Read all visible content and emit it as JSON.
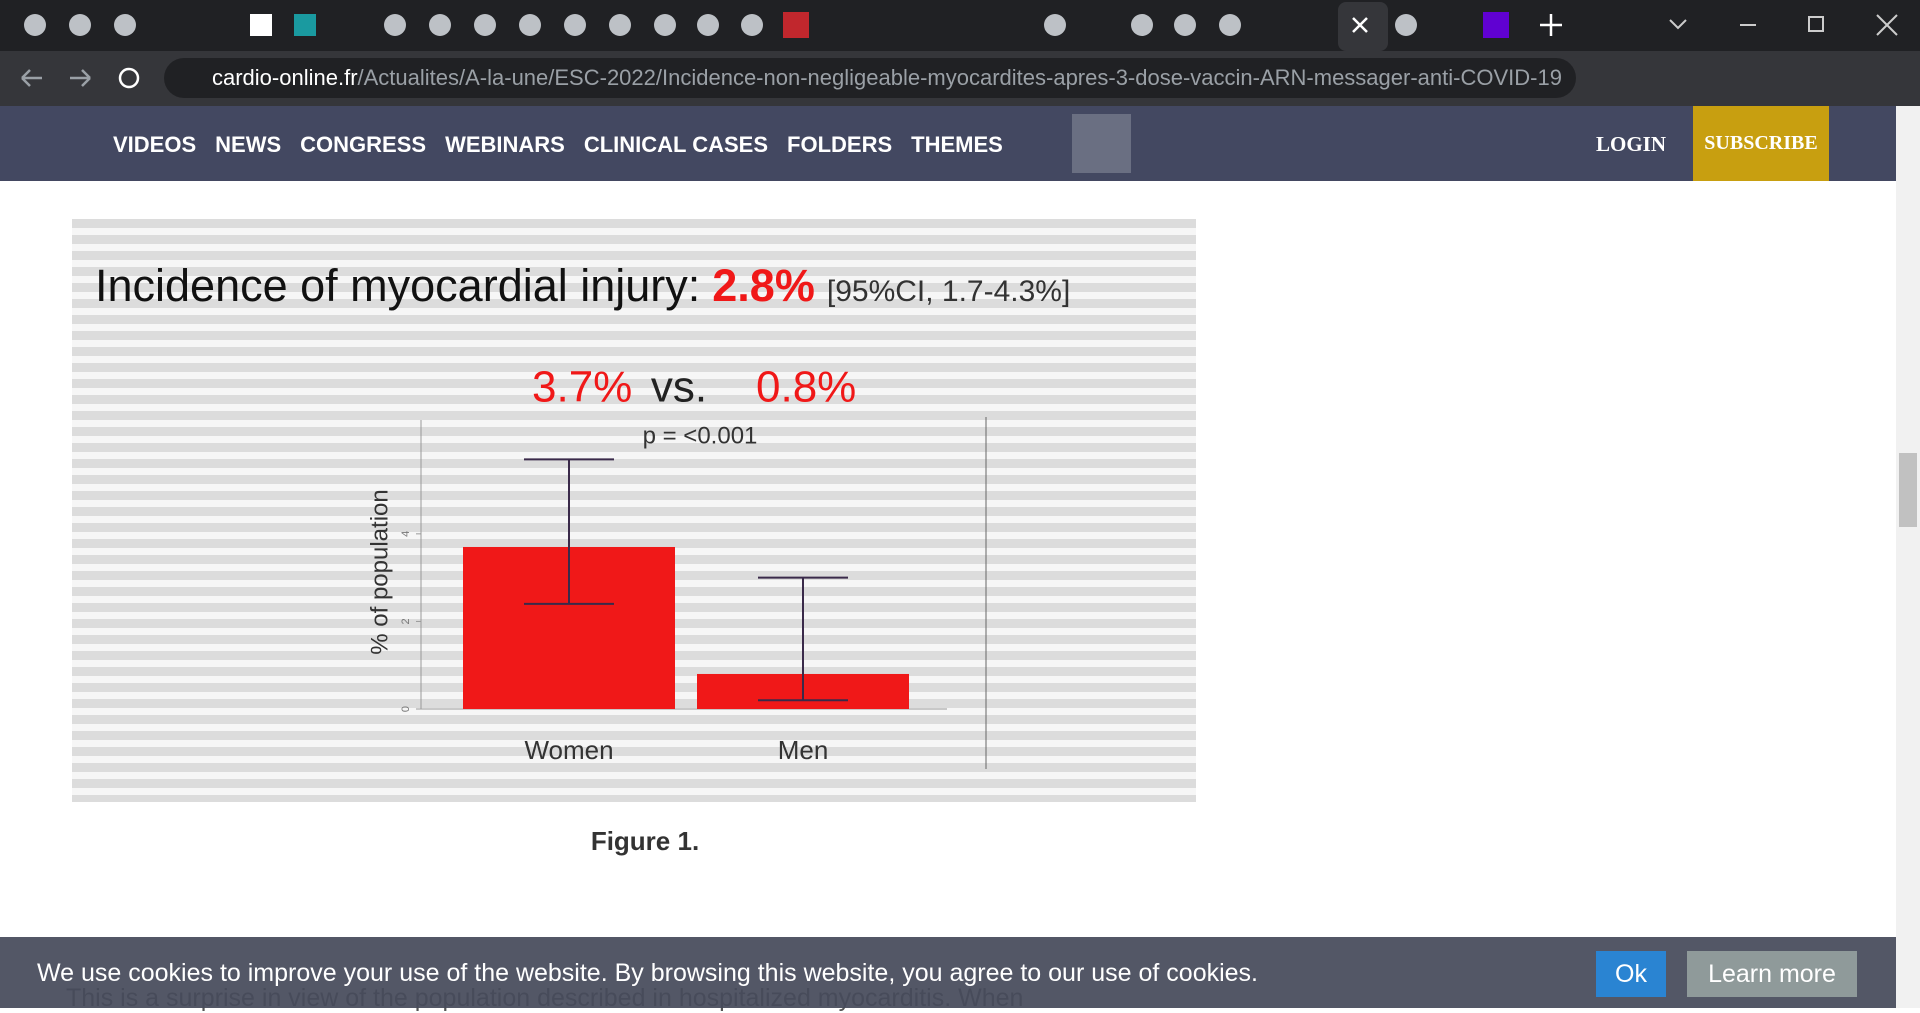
{
  "browser": {
    "url_host": "cardio-online.fr",
    "url_path": "/Actualites/A-la-une/ESC-2022/Incidence-non-negligeable-myocardites-apres-3-dose-vaccin-ARN-messager-anti-COVID-19"
  },
  "nav": {
    "items": [
      "VIDEOS",
      "NEWS",
      "CONGRESS",
      "WEBINARS",
      "CLINICAL CASES",
      "FOLDERS",
      "THEMES"
    ],
    "login": "LOGIN",
    "subscribe": "SUBSCRIBE"
  },
  "chart_data": {
    "type": "bar",
    "title": "Incidence of myocardial injury:",
    "headline_value": "2.8%",
    "confidence_interval": "[95%CI, 1.7-4.3%]",
    "comparison_word": "vs.",
    "annotation": "p = <0.001",
    "y_label": "% of population",
    "categories": [
      "Women",
      "Men"
    ],
    "values": [
      3.7,
      0.8
    ],
    "value_labels": [
      "3.7%",
      "0.8%"
    ],
    "error_low": [
      2.4,
      0.2
    ],
    "error_high": [
      5.7,
      3.0
    ],
    "color": "#f01818",
    "ylim": [
      0,
      6.6
    ],
    "yticks": [
      0,
      2,
      4
    ]
  },
  "caption": "Figure 1.",
  "body_text": "This is a surprise in view of the population described in hospitalized myocarditis. When",
  "cookie": {
    "message": "We use cookies to improve your use of the website. By browsing this website, you agree to our use of cookies.",
    "ok": "Ok",
    "learn_more": "Learn more"
  }
}
